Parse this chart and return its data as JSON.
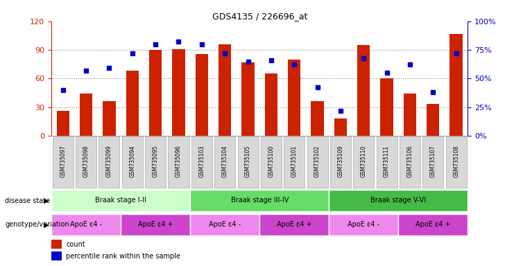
{
  "title": "GDS4135 / 226696_at",
  "samples": [
    "GSM735097",
    "GSM735098",
    "GSM735099",
    "GSM735094",
    "GSM735095",
    "GSM735096",
    "GSM735103",
    "GSM735104",
    "GSM735105",
    "GSM735100",
    "GSM735101",
    "GSM735102",
    "GSM735109",
    "GSM735110",
    "GSM735111",
    "GSM735106",
    "GSM735107",
    "GSM735108"
  ],
  "counts": [
    26,
    44,
    36,
    68,
    90,
    91,
    86,
    96,
    77,
    65,
    80,
    36,
    18,
    95,
    60,
    44,
    33,
    107
  ],
  "percentiles": [
    40,
    57,
    59,
    72,
    80,
    82,
    80,
    72,
    65,
    66,
    62,
    42,
    22,
    68,
    55,
    62,
    38,
    72
  ],
  "ylim_left": [
    0,
    120
  ],
  "ylim_right": [
    0,
    100
  ],
  "yticks_left": [
    0,
    30,
    60,
    90,
    120
  ],
  "yticks_right": [
    0,
    25,
    50,
    75,
    100
  ],
  "bar_color": "#cc2200",
  "dot_color": "#0000cc",
  "disease_state_groups": [
    {
      "label": "Braak stage I-II",
      "start": 0,
      "end": 6,
      "color": "#ccffcc"
    },
    {
      "label": "Braak stage III-IV",
      "start": 6,
      "end": 12,
      "color": "#66dd66"
    },
    {
      "label": "Braak stage V-VI",
      "start": 12,
      "end": 18,
      "color": "#44bb44"
    }
  ],
  "genotype_groups": [
    {
      "label": "ApoE ε4 -",
      "start": 0,
      "end": 3,
      "color": "#ee88ee"
    },
    {
      "label": "ApoE ε4 +",
      "start": 3,
      "end": 6,
      "color": "#cc44cc"
    },
    {
      "label": "ApoE ε4 -",
      "start": 6,
      "end": 9,
      "color": "#ee88ee"
    },
    {
      "label": "ApoE ε4 +",
      "start": 9,
      "end": 12,
      "color": "#cc44cc"
    },
    {
      "label": "ApoE ε4 -",
      "start": 12,
      "end": 15,
      "color": "#ee88ee"
    },
    {
      "label": "ApoE ε4 +",
      "start": 15,
      "end": 18,
      "color": "#cc44cc"
    }
  ],
  "left_label_color": "#cc2200",
  "right_label_color": "#0000cc",
  "background_color": "#ffffff",
  "grid_color": "#888888",
  "n_samples": 18,
  "bar_width": 0.55
}
